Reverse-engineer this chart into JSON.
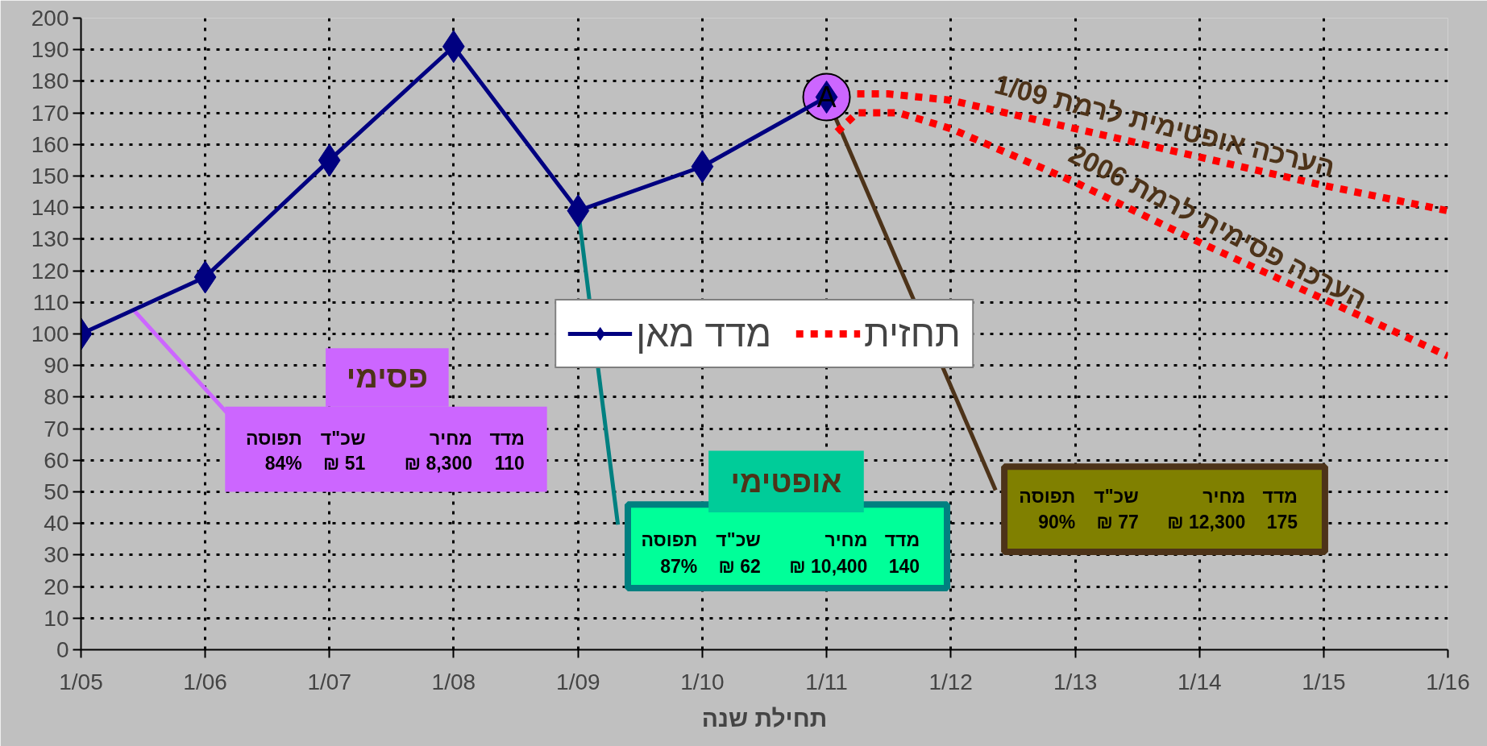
{
  "chart_data": {
    "type": "line",
    "xlabel": "תחילת שנה",
    "x": [
      "2005-01",
      "2006-01",
      "2007-01",
      "2008-01",
      "2009-01",
      "2010-01",
      "2011-01"
    ],
    "series": [
      {
        "name": "מדד מאן",
        "color": "#000080",
        "values": [
          100,
          118,
          155,
          191,
          139,
          153,
          175
        ],
        "marker": "diamond",
        "line_style": "solid"
      },
      {
        "name": "תחזית",
        "color": "#ff0000",
        "x": [
          "2011-04",
          "2011-07",
          "2012-01",
          "2013-01",
          "2014-01",
          "2015-01",
          "2016-01"
        ],
        "values": [
          176,
          176,
          174,
          165,
          156,
          147,
          139
        ],
        "marker": "none",
        "line_style": "dotted"
      },
      {
        "color": "#ff0000",
        "x": [
          "2011-02",
          "2011-04",
          "2011-08",
          "2012-01",
          "2013-01",
          "2014-01",
          "2015-01",
          "2016-01"
        ],
        "values": [
          164,
          170,
          170,
          165,
          148,
          129,
          111,
          93
        ],
        "marker": "none",
        "line_style": "dotted"
      }
    ],
    "xlim": [
      "2005-01",
      "2016-01"
    ],
    "xticks": [
      {
        "value": "2005-01",
        "label": "1/05"
      },
      {
        "value": "2006-01",
        "label": "1/06"
      },
      {
        "value": "2007-01",
        "label": "1/07"
      },
      {
        "value": "2008-01",
        "label": "1/08"
      },
      {
        "value": "2009-01",
        "label": "1/09"
      },
      {
        "value": "2010-01",
        "label": "1/10"
      },
      {
        "value": "2011-01",
        "label": "1/11"
      },
      {
        "value": "2012-01",
        "label": "1/12"
      },
      {
        "value": "2013-01",
        "label": "1/13"
      },
      {
        "value": "2014-01",
        "label": "1/14"
      },
      {
        "value": "2015-01",
        "label": "1/15"
      },
      {
        "value": "2016-01",
        "label": "1/16"
      }
    ],
    "ylim": [
      0,
      200
    ],
    "yticks": [
      0,
      10,
      20,
      30,
      40,
      50,
      60,
      70,
      80,
      90,
      100,
      110,
      120,
      130,
      140,
      150,
      160,
      170,
      180,
      190,
      200
    ],
    "grid": true,
    "legend": "center",
    "annotations": [
      {
        "text": "A",
        "x": "2011-01",
        "y": 175
      },
      "פסימי",
      "אופטימי",
      "הערכה אופטימית לרמת 1/09",
      "הערכה פסימית לרמת 2006",
      "מדד",
      "מחיר",
      "שכ\"ד",
      {
        "text": "תפוסה",
        "x": "2005-06",
        "y": 108
      },
      "110",
      "8,300 ₪",
      "51 ₪",
      "84%",
      "מדד",
      "מחיר",
      "שכ\"ד",
      {
        "text": "תפוסה",
        "x": "2009-01",
        "y": 139
      },
      "140",
      "10,400 ₪",
      "62 ₪",
      "87%",
      "מדד",
      "מחיר",
      "שכ\"ד",
      {
        "text": "תפוסה",
        "x": "2011-01",
        "y": 175
      },
      "175",
      "12,300 ₪",
      "77 ₪",
      "90%"
    ]
  }
}
